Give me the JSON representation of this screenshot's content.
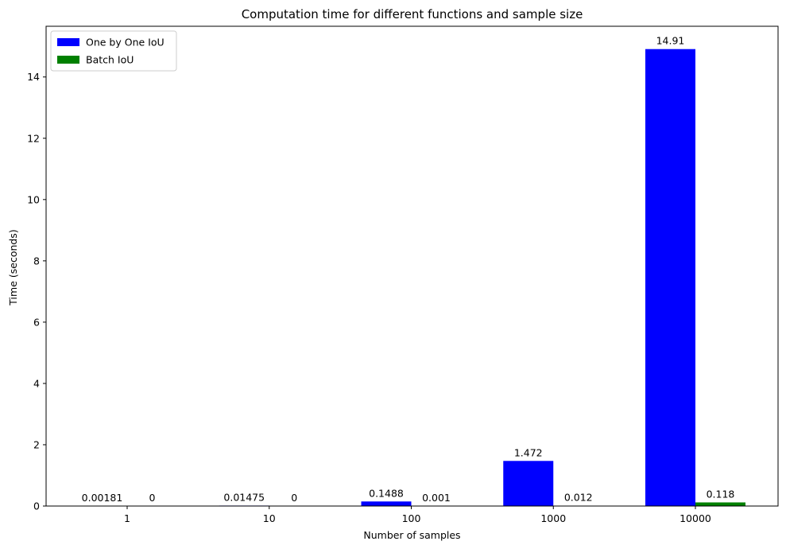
{
  "chart_data": {
    "type": "bar",
    "title": "Computation time for different functions and sample size",
    "xlabel": "Number of samples",
    "ylabel": "Time (seconds)",
    "categories": [
      "1",
      "10",
      "100",
      "1000",
      "10000"
    ],
    "series": [
      {
        "name": "One by One IoU",
        "color": "#0000ff",
        "values": [
          0.00181,
          0.01475,
          0.1488,
          1.472,
          14.91
        ],
        "labels": [
          "0.00181",
          "0.01475",
          "0.1488",
          "1.472",
          "14.91"
        ]
      },
      {
        "name": "Batch IoU",
        "color": "#008000",
        "values": [
          0,
          0,
          0.001,
          0.012,
          0.118
        ],
        "labels": [
          "0",
          "0",
          "0.001",
          "0.012",
          "0.118"
        ]
      }
    ],
    "ylim": [
      0,
      15.655
    ],
    "yticks": [
      0,
      2,
      4,
      6,
      8,
      10,
      12,
      14
    ],
    "grid": false,
    "legend": "top-left"
  }
}
